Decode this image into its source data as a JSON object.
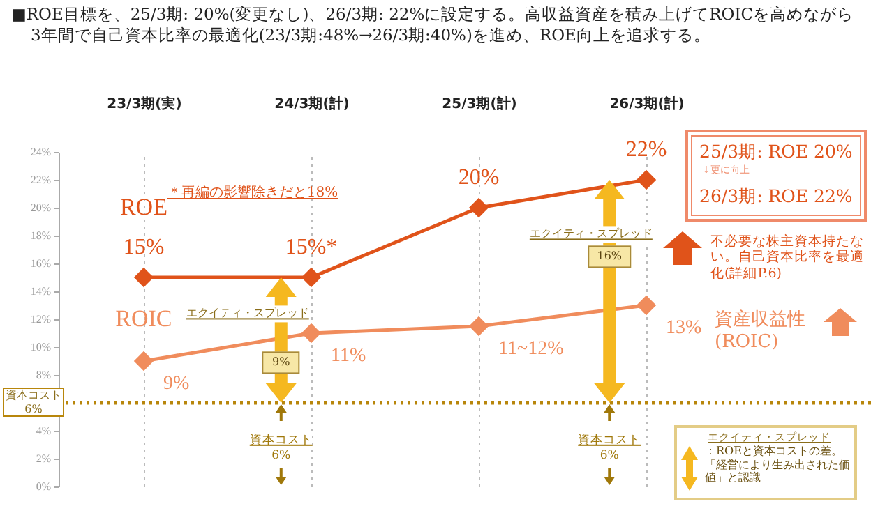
{
  "chart_data": {
    "type": "line",
    "title": "■ROE目標を、25/3期: 20%(変更なし)、26/3期: 22%に設定する。高収益資産を積み上げてROICを高めながら3年間で自己資本比率の最適化(23/3期:48%→26/3期:40%)を進め、ROE向上を追求する。",
    "categories": [
      "23/3期(実)",
      "24/3期(計)",
      "25/3期(計)",
      "26/3期(計)"
    ],
    "series": [
      {
        "name": "ROE",
        "color": "#e0531a",
        "values": [
          15,
          15,
          20,
          22
        ],
        "value_labels": [
          "15%",
          "15%*",
          "20%",
          "22%"
        ]
      },
      {
        "name": "ROIC",
        "color": "#f08c5c",
        "values": [
          9,
          11,
          11.5,
          13
        ],
        "value_labels": [
          "9%",
          "11%",
          "11~12%",
          "13%"
        ]
      }
    ],
    "ylim": [
      0,
      24
    ],
    "yticks": [
      {
        "value": 0,
        "label": "0%"
      },
      {
        "value": 2,
        "label": "2%"
      },
      {
        "value": 4,
        "label": "4%"
      },
      {
        "value": 6,
        "label": null
      },
      {
        "value": 8,
        "label": "8%"
      },
      {
        "value": 10,
        "label": "10%"
      },
      {
        "value": 12,
        "label": "12%"
      },
      {
        "value": 14,
        "label": "14%"
      },
      {
        "value": 16,
        "label": "16%"
      },
      {
        "value": 18,
        "label": "18%"
      },
      {
        "value": 20,
        "label": "20%"
      },
      {
        "value": 22,
        "label": "22%"
      },
      {
        "value": 24,
        "label": "24%"
      }
    ],
    "grid": "x",
    "marker": "diamond",
    "line_style": "solid",
    "legend": false,
    "ref_lines": [
      {
        "axis": "y",
        "value": 6,
        "label": "資本コスト\n6%",
        "color": "#b8860b",
        "line_style": "dotted"
      }
    ],
    "annotations": [
      "＊再編の影響除きだと18%",
      "エクイティ・スプレッド",
      "9%",
      "資本コスト",
      "6%",
      "エクイティ・スプレッド",
      "16%",
      "資本コスト",
      "6%",
      "25/3期: ROE 20%",
      "↓更に向上",
      "26/3期: ROE 22%",
      "不必要な株主資本持たない。自己資本比率を最適化(詳細P.6)",
      "資産収益性\n(ROIC)",
      "エクイティ・スプレッド",
      "：ROEと資本コストの差。「経営により生み出された価値」と認識"
    ]
  }
}
